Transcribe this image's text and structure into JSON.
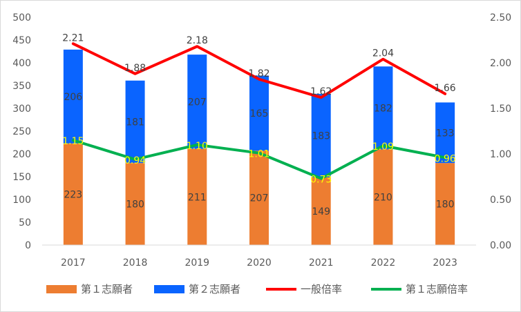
{
  "chart_data": {
    "type": "bar",
    "categories": [
      "2017",
      "2018",
      "2019",
      "2020",
      "2021",
      "2022",
      "2023"
    ],
    "stacked": true,
    "series": [
      {
        "name": "第１志願者",
        "kind": "bar",
        "axis": "left",
        "color": "#ed7d31",
        "values": [
          223,
          180,
          211,
          207,
          149,
          210,
          180
        ],
        "labels": [
          "223",
          "180",
          "211",
          "207",
          "149",
          "210",
          "180"
        ]
      },
      {
        "name": "第２志願者",
        "kind": "bar",
        "axis": "left",
        "color": "#0a64ff",
        "values": [
          206,
          181,
          207,
          165,
          183,
          182,
          133
        ],
        "labels": [
          "206",
          "181",
          "207",
          "165",
          "183",
          "182",
          "133"
        ]
      },
      {
        "name": "一般倍率",
        "kind": "line",
        "axis": "right",
        "color": "#ff0000",
        "values": [
          2.21,
          1.88,
          2.18,
          1.82,
          1.62,
          2.04,
          1.66
        ],
        "labels": [
          "2.21",
          "1.88",
          "2.18",
          "1.82",
          "1.62",
          "2.04",
          "1.66"
        ]
      },
      {
        "name": "第１志願倍率",
        "kind": "line",
        "axis": "right",
        "color": "#00b050",
        "values": [
          1.15,
          0.94,
          1.1,
          1.01,
          0.73,
          1.09,
          0.96
        ],
        "labels": [
          "1.15",
          "0.94",
          "1.10",
          "1.01",
          "0.73",
          "1.09",
          "0.96"
        ]
      }
    ],
    "y_left": {
      "min": 0,
      "max": 500,
      "ticks": [
        "0",
        "50",
        "100",
        "150",
        "200",
        "250",
        "300",
        "350",
        "400",
        "450",
        "500"
      ]
    },
    "y_right": {
      "min": 0,
      "max": 2.5,
      "ticks": [
        "0.00",
        "0.50",
        "1.00",
        "1.50",
        "2.00",
        "2.50"
      ]
    },
    "grid": false,
    "legend_position": "bottom",
    "secondary_label_color": "#ffff00"
  }
}
